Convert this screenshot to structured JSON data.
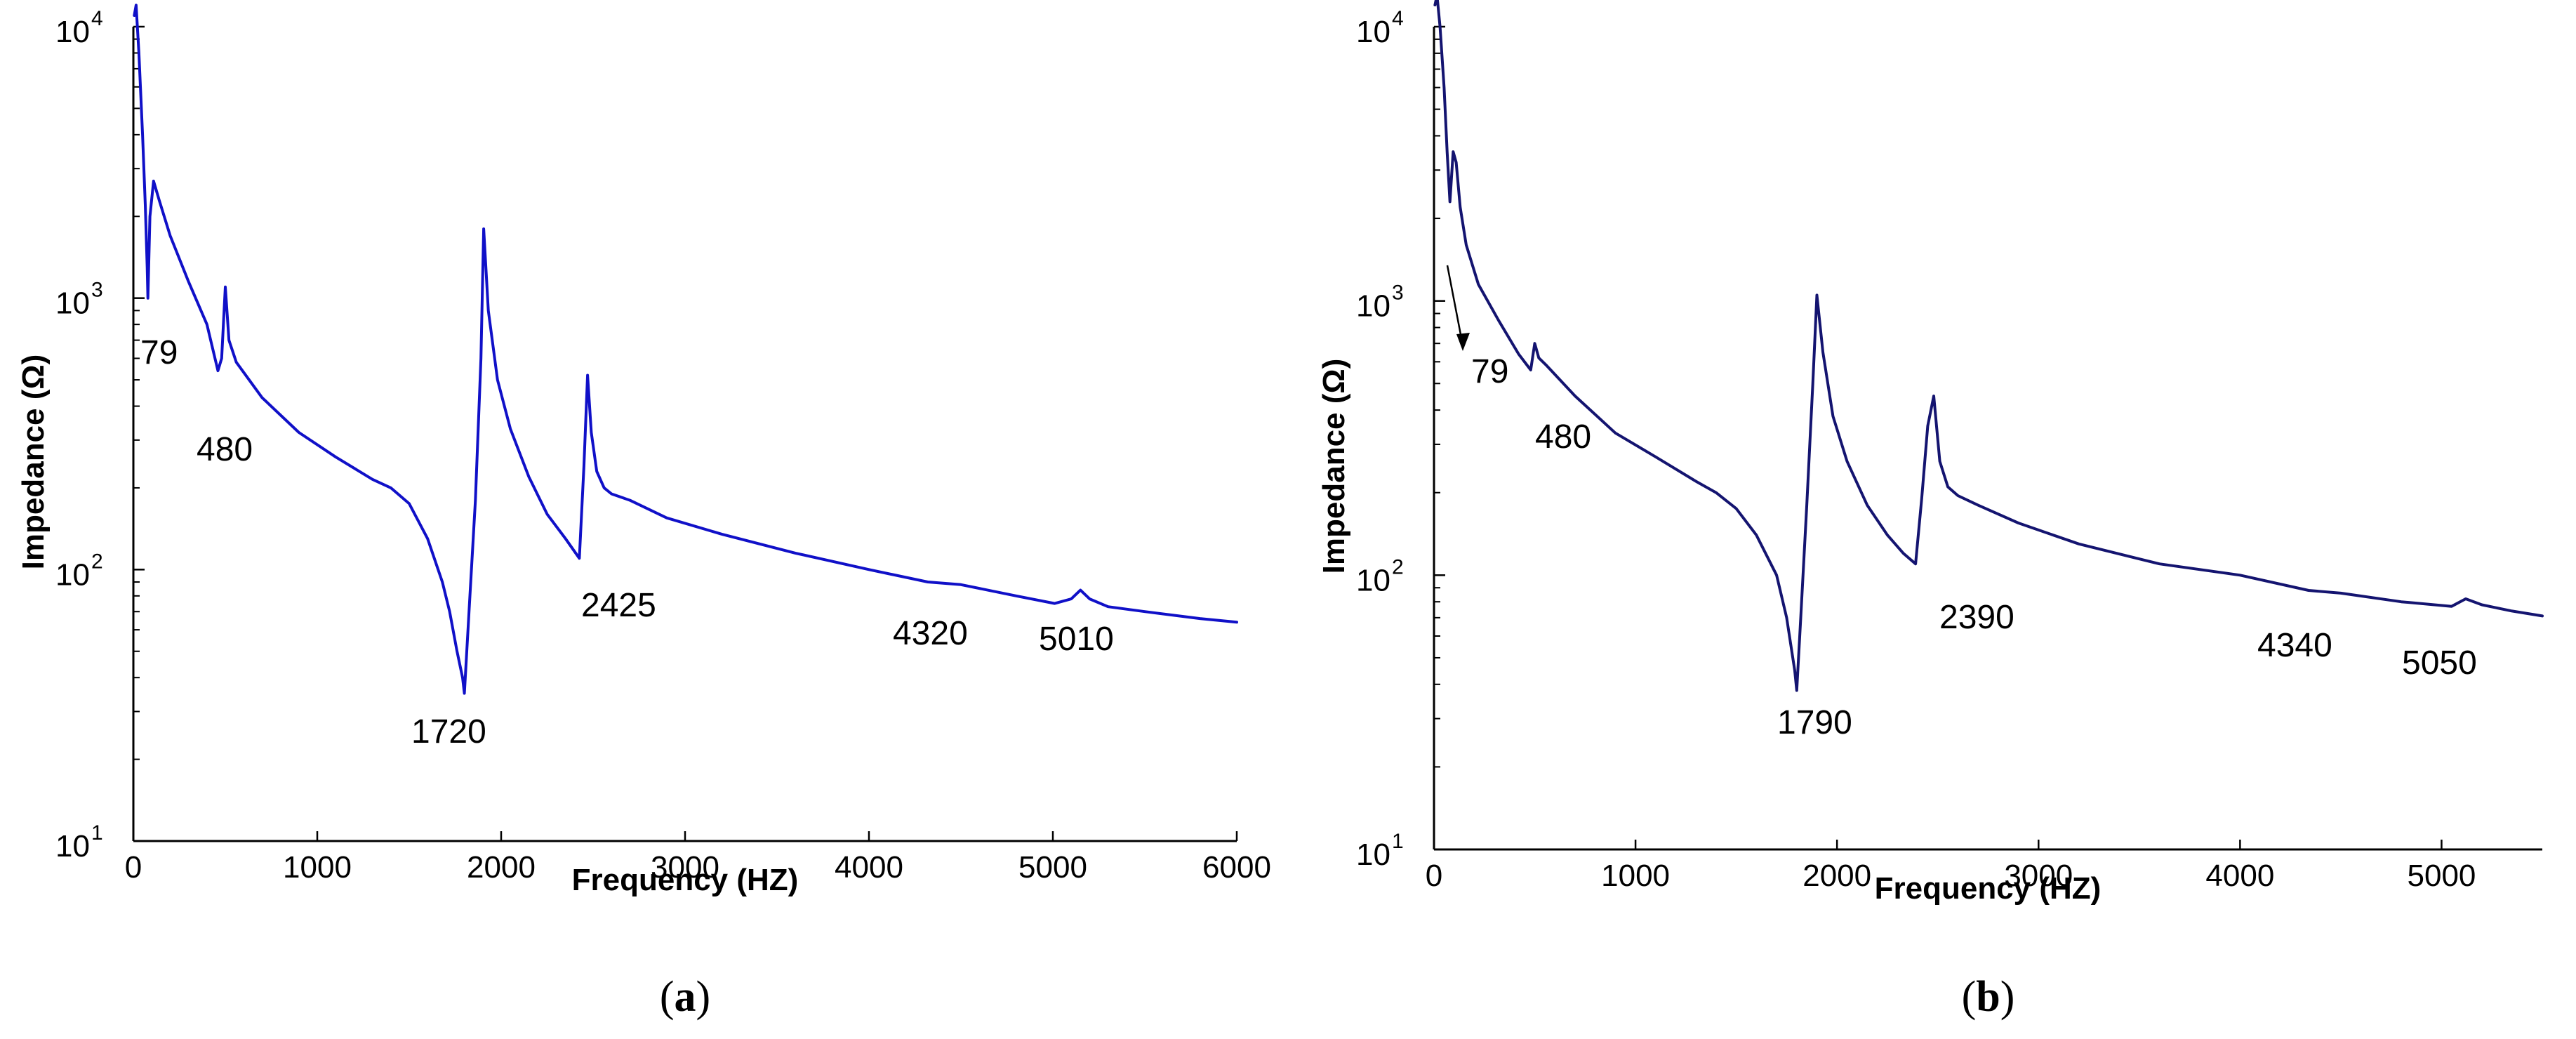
{
  "chart_data": [
    {
      "type": "line",
      "panel": "a",
      "subcaption": {
        "open": "(",
        "letter": "a",
        "close": ")"
      },
      "xlabel": "Frequency (HZ)",
      "ylabel": "Impedance (Ω)",
      "yscale": "log",
      "xlim": [
        0,
        6000
      ],
      "ylim_exp": [
        1,
        4
      ],
      "xticks": [
        0,
        1000,
        2000,
        3000,
        4000,
        5000,
        6000
      ],
      "yticks": [
        {
          "base": "10",
          "exp": "1",
          "value": 10
        },
        {
          "base": "10",
          "exp": "2",
          "value": 100
        },
        {
          "base": "10",
          "exp": "3",
          "value": 1000
        },
        {
          "base": "10",
          "exp": "4",
          "value": 10000
        }
      ],
      "line_color": "#1010c8",
      "series": [
        {
          "name": "Impedance",
          "x": [
            5,
            15,
            30,
            50,
            65,
            75,
            79,
            90,
            110,
            140,
            200,
            300,
            400,
            460,
            480,
            500,
            520,
            560,
            700,
            900,
            1100,
            1300,
            1400,
            1500,
            1600,
            1680,
            1720,
            1760,
            1790,
            1800,
            1830,
            1860,
            1890,
            1905,
            1930,
            1980,
            2050,
            2150,
            2250,
            2350,
            2425,
            2450,
            2470,
            2490,
            2520,
            2560,
            2600,
            2700,
            2900,
            3200,
            3600,
            4000,
            4320,
            4500,
            4800,
            5010,
            5100,
            5150,
            5200,
            5300,
            5500,
            5800,
            6000
          ],
          "y": [
            11000,
            12000,
            8000,
            4000,
            2200,
            1300,
            1000,
            2000,
            2700,
            2300,
            1700,
            1150,
            800,
            540,
            600,
            1100,
            700,
            580,
            430,
            320,
            260,
            215,
            200,
            175,
            130,
            90,
            70,
            50,
            40,
            35,
            80,
            180,
            600,
            1800,
            900,
            500,
            330,
            220,
            160,
            130,
            110,
            240,
            520,
            320,
            230,
            200,
            190,
            180,
            155,
            135,
            115,
            100,
            90,
            88,
            80,
            75,
            78,
            84,
            78,
            73,
            70,
            66,
            64
          ]
        }
      ],
      "annotations": [
        "79",
        "480",
        "1720",
        "2425",
        "4320",
        "5010"
      ]
    },
    {
      "type": "line",
      "panel": "b",
      "subcaption": {
        "open": "(",
        "letter": "b",
        "close": ")"
      },
      "xlabel": "Frequency (HZ)",
      "ylabel": "Impedance (Ω)",
      "yscale": "log",
      "xlim": [
        0,
        5500
      ],
      "ylim_exp": [
        1,
        4
      ],
      "xticks": [
        0,
        1000,
        2000,
        3000,
        4000,
        5000
      ],
      "yticks": [
        {
          "base": "10",
          "exp": "1",
          "value": 10
        },
        {
          "base": "10",
          "exp": "2",
          "value": 100
        },
        {
          "base": "10",
          "exp": "3",
          "value": 1000
        },
        {
          "base": "10",
          "exp": "4",
          "value": 10000
        }
      ],
      "line_color": "#141470",
      "series": [
        {
          "name": "Impedance",
          "x": [
            5,
            15,
            30,
            50,
            65,
            79,
            95,
            110,
            130,
            160,
            220,
            320,
            420,
            480,
            500,
            520,
            560,
            700,
            900,
            1100,
            1300,
            1400,
            1500,
            1600,
            1700,
            1750,
            1790,
            1800,
            1820,
            1850,
            1880,
            1900,
            1930,
            1980,
            2050,
            2150,
            2250,
            2330,
            2390,
            2420,
            2450,
            2480,
            2510,
            2550,
            2600,
            2700,
            2900,
            3200,
            3600,
            4000,
            4340,
            4500,
            4800,
            5050,
            5120,
            5200,
            5350,
            5500
          ],
          "y": [
            12000,
            13000,
            10000,
            6000,
            3500,
            2300,
            3500,
            3200,
            2200,
            1600,
            1150,
            850,
            640,
            560,
            700,
            620,
            580,
            450,
            330,
            270,
            220,
            200,
            175,
            140,
            100,
            70,
            45,
            38,
            70,
            180,
            500,
            1050,
            650,
            380,
            260,
            180,
            140,
            120,
            110,
            190,
            350,
            450,
            260,
            210,
            195,
            180,
            155,
            130,
            110,
            100,
            88,
            86,
            80,
            77,
            82,
            78,
            74,
            71
          ]
        }
      ],
      "annotations": [
        "79",
        "480",
        "1790",
        "2390",
        "4340",
        "5050"
      ]
    }
  ]
}
